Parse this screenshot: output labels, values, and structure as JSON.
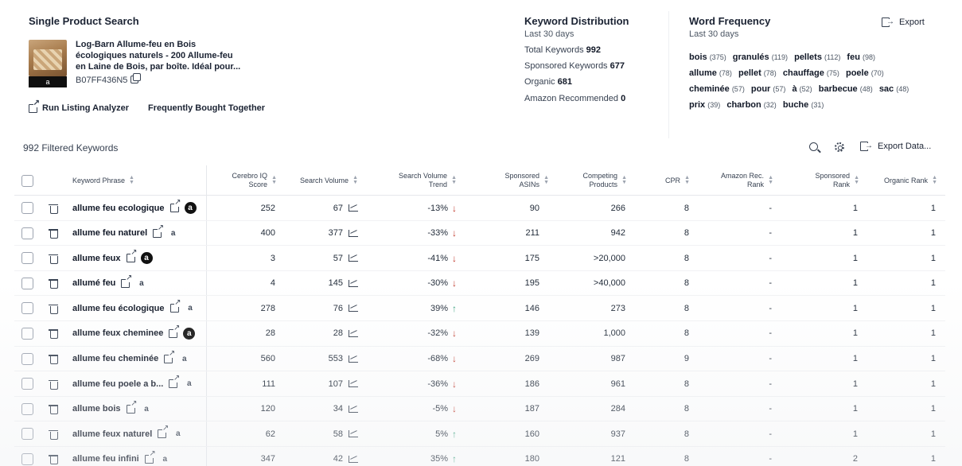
{
  "product_panel": {
    "title": "Single Product Search",
    "product_name": "Log-Barn Allume-feu en Bois écologiques naturels - 200 Allume-feu en Laine de Bois, par boîte. Idéal pour...",
    "asin": "B07FF436N5",
    "thumb_badge": "a",
    "run_listing_label": "Run Listing Analyzer",
    "fbt_label": "Frequently Bought Together"
  },
  "keyword_distribution": {
    "title": "Keyword Distribution",
    "period": "Last 30 days",
    "total_label": "Total Keywords",
    "total_value": "992",
    "sponsored_label": "Sponsored Keywords",
    "sponsored_value": "677",
    "organic_label": "Organic",
    "organic_value": "681",
    "amazon_label": "Amazon Recommended",
    "amazon_value": "0"
  },
  "word_frequency": {
    "title": "Word Frequency",
    "period": "Last 30 days",
    "export_label": "Export",
    "words": [
      {
        "word": "bois",
        "count": "(375)"
      },
      {
        "word": "granulés",
        "count": "(119)"
      },
      {
        "word": "pellets",
        "count": "(112)"
      },
      {
        "word": "feu",
        "count": "(98)"
      },
      {
        "word": "allume",
        "count": "(78)"
      },
      {
        "word": "pellet",
        "count": "(78)"
      },
      {
        "word": "chauffage",
        "count": "(75)"
      },
      {
        "word": "poele",
        "count": "(70)"
      },
      {
        "word": "cheminée",
        "count": "(57)"
      },
      {
        "word": "pour",
        "count": "(57)"
      },
      {
        "word": "à",
        "count": "(52)"
      },
      {
        "word": "barbecue",
        "count": "(48)"
      },
      {
        "word": "sac",
        "count": "(48)"
      },
      {
        "word": "prix",
        "count": "(39)"
      },
      {
        "word": "charbon",
        "count": "(32)"
      },
      {
        "word": "buche",
        "count": "(31)"
      }
    ]
  },
  "toolbar": {
    "filtered_label": "992 Filtered Keywords",
    "export_data_label": "Export Data..."
  },
  "columns": {
    "keyword": "Keyword Phrase",
    "cerebro_1": "Cerebro IQ",
    "cerebro_2": "Score",
    "search_volume": "Search Volume",
    "sv_trend_1": "Search Volume",
    "sv_trend_2": "Trend",
    "sponsored_1": "Sponsored",
    "sponsored_2": "ASINs",
    "competing_1": "Competing",
    "competing_2": "Products",
    "cpr": "CPR",
    "amz_rank_1": "Amazon Rec.",
    "amz_rank_2": "Rank",
    "sp_rank_1": "Sponsored",
    "sp_rank_2": "Rank",
    "organic_rank": "Organic Rank"
  },
  "rows": [
    {
      "keyword": "allume feu ecologique",
      "amz": "on",
      "iq": "252",
      "sv": "67",
      "trend": "-13%",
      "dir": "down",
      "sponsored": "90",
      "competing": "266",
      "cpr": "8",
      "amzrank": "-",
      "sprank": "1",
      "orank": "1"
    },
    {
      "keyword": "allume feu naturel",
      "amz": "off",
      "iq": "400",
      "sv": "377",
      "trend": "-33%",
      "dir": "down",
      "sponsored": "211",
      "competing": "942",
      "cpr": "8",
      "amzrank": "-",
      "sprank": "1",
      "orank": "1"
    },
    {
      "keyword": "allume feux",
      "amz": "on",
      "iq": "3",
      "sv": "57",
      "trend": "-41%",
      "dir": "down",
      "sponsored": "175",
      "competing": ">20,000",
      "cpr": "8",
      "amzrank": "-",
      "sprank": "1",
      "orank": "1"
    },
    {
      "keyword": "allumé feu",
      "amz": "off",
      "iq": "4",
      "sv": "145",
      "trend": "-30%",
      "dir": "down",
      "sponsored": "195",
      "competing": ">40,000",
      "cpr": "8",
      "amzrank": "-",
      "sprank": "1",
      "orank": "1"
    },
    {
      "keyword": "allume feu écologique",
      "amz": "off",
      "iq": "278",
      "sv": "76",
      "trend": "39%",
      "dir": "up",
      "sponsored": "146",
      "competing": "273",
      "cpr": "8",
      "amzrank": "-",
      "sprank": "1",
      "orank": "1"
    },
    {
      "keyword": "allume feux cheminee",
      "amz": "on",
      "iq": "28",
      "sv": "28",
      "trend": "-32%",
      "dir": "down",
      "sponsored": "139",
      "competing": "1,000",
      "cpr": "8",
      "amzrank": "-",
      "sprank": "1",
      "orank": "1"
    },
    {
      "keyword": "allume feu cheminée",
      "amz": "off",
      "iq": "560",
      "sv": "553",
      "trend": "-68%",
      "dir": "down",
      "sponsored": "269",
      "competing": "987",
      "cpr": "9",
      "amzrank": "-",
      "sprank": "1",
      "orank": "1"
    },
    {
      "keyword": "allume feu poele a b...",
      "amz": "off",
      "iq": "111",
      "sv": "107",
      "trend": "-36%",
      "dir": "down",
      "sponsored": "186",
      "competing": "961",
      "cpr": "8",
      "amzrank": "-",
      "sprank": "1",
      "orank": "1"
    },
    {
      "keyword": "allume bois",
      "amz": "off",
      "iq": "120",
      "sv": "34",
      "trend": "-5%",
      "dir": "down",
      "sponsored": "187",
      "competing": "284",
      "cpr": "8",
      "amzrank": "-",
      "sprank": "1",
      "orank": "1"
    },
    {
      "keyword": "allume feux naturel",
      "amz": "off",
      "iq": "62",
      "sv": "58",
      "trend": "5%",
      "dir": "up",
      "sponsored": "160",
      "competing": "937",
      "cpr": "8",
      "amzrank": "-",
      "sprank": "1",
      "orank": "1"
    },
    {
      "keyword": "allume feu infini",
      "amz": "off",
      "iq": "347",
      "sv": "42",
      "trend": "35%",
      "dir": "up",
      "sponsored": "180",
      "competing": "121",
      "cpr": "8",
      "amzrank": "-",
      "sprank": "2",
      "orank": "1"
    }
  ],
  "amz_badge_letter": "a",
  "colors": {
    "trend_down": "#c0392b",
    "trend_up": "#3aa17e",
    "badge_on": "#111111"
  }
}
